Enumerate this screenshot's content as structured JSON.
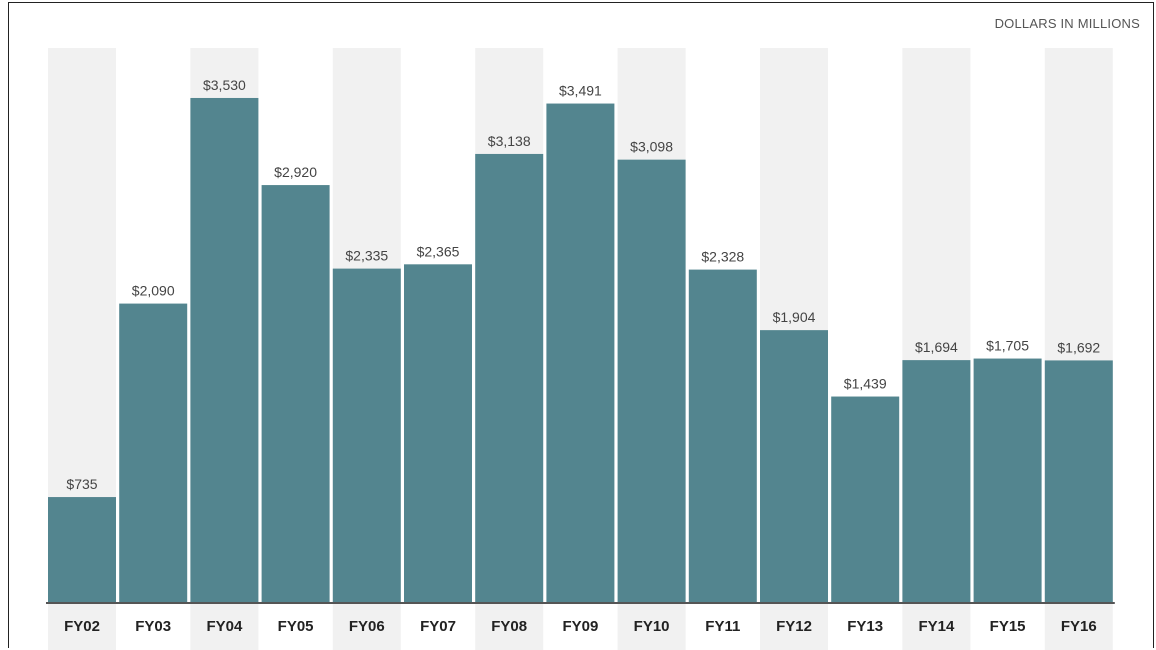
{
  "chart_data": {
    "type": "bar",
    "unit_note": "DOLLARS IN MILLIONS",
    "categories": [
      "FY02",
      "FY03",
      "FY04",
      "FY05",
      "FY06",
      "FY07",
      "FY08",
      "FY09",
      "FY10",
      "FY11",
      "FY12",
      "FY13",
      "FY14",
      "FY15",
      "FY16"
    ],
    "values": [
      735,
      2090,
      3530,
      2920,
      2335,
      2365,
      3138,
      3491,
      3098,
      2328,
      1904,
      1439,
      1694,
      1705,
      1692
    ],
    "data_labels": [
      "$735",
      "$2,090",
      "$3,530",
      "$2,920",
      "$2,335",
      "$2,365",
      "$3,138",
      "$3,491",
      "$3,098",
      "$2,328",
      "$1,904",
      "$1,439",
      "$1,694",
      "$1,705",
      "$1,692"
    ],
    "title": "",
    "xlabel": "",
    "ylabel": "",
    "ylim": [
      0,
      3880
    ],
    "grid": false,
    "legend": "none",
    "colors": {
      "bar": "#53858f",
      "band_alternate": "#f1f1f1",
      "axis": "#555555"
    }
  }
}
